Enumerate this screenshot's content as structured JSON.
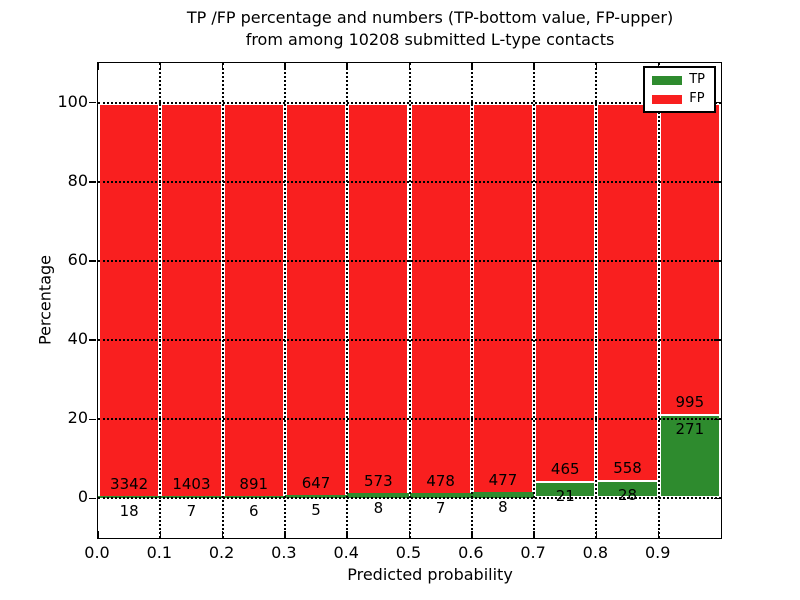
{
  "title": {
    "line1": "TP /FP percentage and numbers (TP-bottom value, FP-upper)",
    "line2": "from among 10208 submitted L-type contacts"
  },
  "chart_data": {
    "type": "bar",
    "stacked": true,
    "normalized_to_percent": true,
    "title": "TP /FP percentage and numbers (TP-bottom value, FP-upper)\nfrom among 10208 submitted L-type contacts",
    "xlabel": "Predicted probability",
    "ylabel": "Percentage",
    "xlim": [
      0.0,
      1.0
    ],
    "ylim": [
      -10,
      110
    ],
    "bin_width": 0.1,
    "x_tick_labels": [
      "0.0",
      "0.1",
      "0.2",
      "0.3",
      "0.4",
      "0.5",
      "0.6",
      "0.7",
      "0.8",
      "0.9"
    ],
    "y_tick_values": [
      0,
      20,
      40,
      60,
      80,
      100
    ],
    "y_tick_labels": [
      "0",
      "20",
      "40",
      "60",
      "80",
      "100"
    ],
    "grid": {
      "visible": true,
      "style": "dotted",
      "color": "#000000"
    },
    "bar_edge_color": "#ffffff",
    "total_submitted": 10208,
    "series": [
      {
        "name": "TP",
        "color": "#2e8b2e",
        "counts": [
          18,
          7,
          6,
          5,
          8,
          7,
          8,
          21,
          28,
          271
        ]
      },
      {
        "name": "FP",
        "color": "#f91f1f",
        "counts": [
          3342,
          1403,
          891,
          647,
          573,
          478,
          477,
          465,
          558,
          995
        ]
      }
    ],
    "legend": {
      "position": "upper-right",
      "entries": [
        "TP",
        "FP"
      ]
    }
  }
}
